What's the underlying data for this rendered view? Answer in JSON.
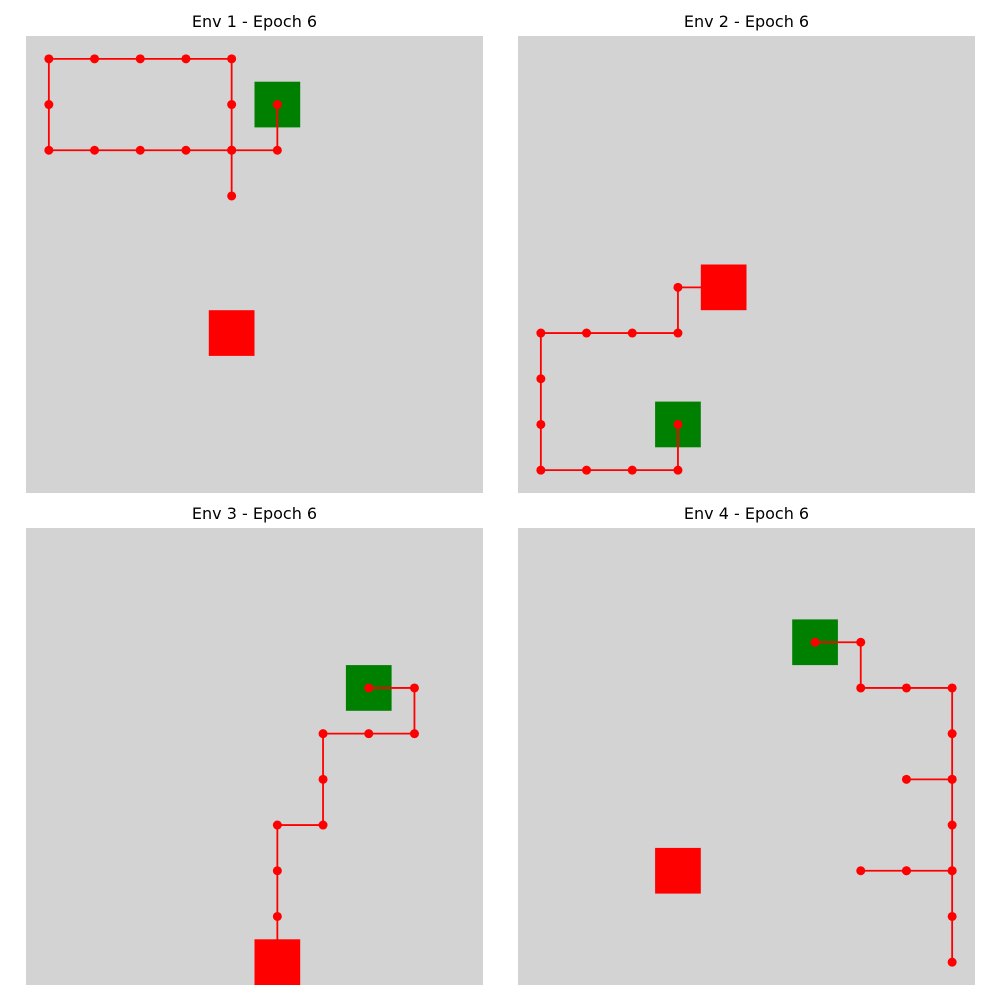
{
  "colors": {
    "background": "#d3d3d3",
    "goal": "#008000",
    "agent_start": "#ff0000",
    "path": "#ff0000"
  },
  "chart_data": [
    {
      "type": "scatter",
      "title": "Env 1 - Epoch 6",
      "grid_size": 10,
      "grid": false,
      "goal_cell": [
        5,
        1
      ],
      "start_cell": [
        4,
        6
      ],
      "path": [
        [
          5,
          1
        ],
        [
          5,
          2
        ],
        [
          4,
          2
        ],
        [
          4,
          3
        ],
        [
          4,
          2
        ],
        [
          3,
          2
        ],
        [
          2,
          2
        ],
        [
          1,
          2
        ],
        [
          0,
          2
        ],
        [
          0,
          1
        ],
        [
          0,
          0
        ],
        [
          1,
          0
        ],
        [
          2,
          0
        ],
        [
          3,
          0
        ],
        [
          4,
          0
        ],
        [
          4,
          1
        ],
        [
          4,
          2
        ]
      ]
    },
    {
      "type": "scatter",
      "title": "Env 2 - Epoch 6",
      "grid_size": 10,
      "grid": false,
      "goal_cell": [
        3,
        8
      ],
      "start_cell": [
        4,
        5
      ],
      "path": [
        [
          3,
          8
        ],
        [
          3,
          9
        ],
        [
          2,
          9
        ],
        [
          1,
          9
        ],
        [
          0,
          9
        ],
        [
          0,
          8
        ],
        [
          0,
          7
        ],
        [
          0,
          6
        ],
        [
          1,
          6
        ],
        [
          2,
          6
        ],
        [
          3,
          6
        ],
        [
          3,
          5
        ],
        [
          4,
          5
        ]
      ]
    },
    {
      "type": "scatter",
      "title": "Env 3 - Epoch 6",
      "grid_size": 10,
      "grid": false,
      "goal_cell": [
        7,
        3
      ],
      "start_cell": [
        5,
        9
      ],
      "path": [
        [
          7,
          3
        ],
        [
          8,
          3
        ],
        [
          8,
          4
        ],
        [
          7,
          4
        ],
        [
          6,
          4
        ],
        [
          6,
          5
        ],
        [
          6,
          6
        ],
        [
          5,
          6
        ],
        [
          5,
          7
        ],
        [
          5,
          8
        ],
        [
          5,
          9
        ]
      ]
    },
    {
      "type": "scatter",
      "title": "Env 4 - Epoch 6",
      "grid_size": 10,
      "grid": false,
      "goal_cell": [
        6,
        2
      ],
      "start_cell": [
        3,
        7
      ],
      "path": [
        [
          6,
          2
        ],
        [
          7,
          2
        ],
        [
          7,
          3
        ],
        [
          8,
          3
        ],
        [
          9,
          3
        ],
        [
          9,
          4
        ],
        [
          9,
          5
        ],
        [
          8,
          5
        ],
        [
          9,
          5
        ],
        [
          9,
          6
        ],
        [
          9,
          7
        ],
        [
          8,
          7
        ],
        [
          7,
          7
        ],
        [
          8,
          7
        ],
        [
          9,
          7
        ],
        [
          9,
          8
        ],
        [
          9,
          9
        ]
      ]
    }
  ]
}
